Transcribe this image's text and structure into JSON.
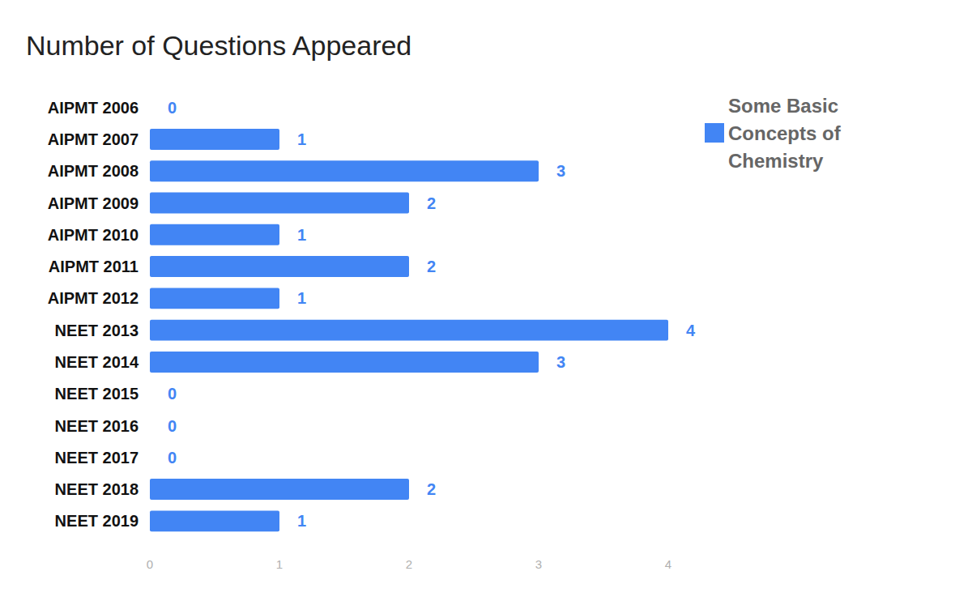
{
  "chart_data": {
    "type": "bar",
    "title": "Number of Questions Appeared",
    "orientation": "horizontal",
    "categories": [
      "AIPMT 2006",
      "AIPMT 2007",
      "AIPMT 2008",
      "AIPMT 2009",
      "AIPMT 2010",
      "AIPMT 2011",
      "AIPMT 2012",
      "NEET 2013",
      "NEET 2014",
      "NEET 2015",
      "NEET 2016",
      "NEET 2017",
      "NEET 2018",
      "NEET 2019"
    ],
    "series": [
      {
        "name": "Some Basic Concepts of Chemistry",
        "color": "#4285f4",
        "values": [
          0,
          1,
          3,
          2,
          1,
          2,
          1,
          4,
          3,
          0,
          0,
          0,
          2,
          1
        ]
      }
    ],
    "xlim": [
      0,
      4
    ],
    "xticks": [
      0,
      1,
      2,
      3,
      4
    ],
    "grid": false,
    "legend": "top-right",
    "data_labels": true
  }
}
